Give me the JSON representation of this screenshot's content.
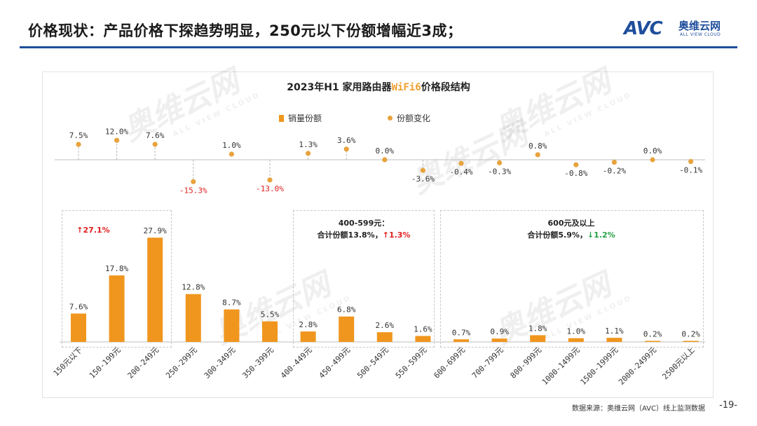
{
  "header": {
    "headline": "价格现状：产品价格下探趋势明显，250元以下份额增幅近3成；",
    "logo_mark": "AVC",
    "logo_cn": "奥维云网",
    "logo_en": "ALL VIEW CLOUD"
  },
  "chart_title": {
    "prefix": "2023年H1 家用路由器",
    "highlight": "WiFi6",
    "suffix": "价格段结构"
  },
  "legend": {
    "bar_label": "销量份额",
    "dot_label": "份额变化"
  },
  "groups": {
    "g1_change": "27.1%",
    "g1_arrow": "↑",
    "g2_title": "400-599元：",
    "g2_total_prefix": "合计份额13.8%，",
    "g2_arrow": "↑",
    "g2_change": "1.3%",
    "g3_title": "600元及以上",
    "g3_total_prefix": "合计份额5.9%，",
    "g3_arrow": "↓",
    "g3_change": "1.2%"
  },
  "watermark": {
    "text": "奥维云网",
    "sub": "ALL VIEW CLOUD"
  },
  "footer": {
    "source": "数据来源：奥维云网（AVC）线上监测数据",
    "page": "-19-"
  },
  "colors": {
    "bar": "#f0961e",
    "dot": "#e7a33d",
    "negative": "#e02020",
    "up": "#e02020",
    "down": "#22a040",
    "brand": "#1f4e9c"
  },
  "chart_data": {
    "type": "bar",
    "title": "2023年H1 家用路由器WiFi6价格段结构",
    "categories": [
      "150元以下",
      "150-199元",
      "200-249元",
      "250-299元",
      "300-349元",
      "350-399元",
      "400-449元",
      "450-499元",
      "500-549元",
      "550-599元",
      "600-699元",
      "700-799元",
      "800-999元",
      "1000-1499元",
      "1500-1999元",
      "2000-2499元",
      "2500元以上"
    ],
    "series": [
      {
        "name": "销量份额",
        "type": "bar",
        "values": [
          7.6,
          17.8,
          27.9,
          12.8,
          8.7,
          5.5,
          2.8,
          6.8,
          2.6,
          1.6,
          0.7,
          0.9,
          1.8,
          1.0,
          1.1,
          0.2,
          0.2
        ],
        "labels": [
          "7.6%",
          "17.8%",
          "27.9%",
          "12.8%",
          "8.7%",
          "5.5%",
          "2.8%",
          "6.8%",
          "2.6%",
          "1.6%",
          "0.7%",
          "0.9%",
          "1.8%",
          "1.0%",
          "1.1%",
          "0.2%",
          "0.2%"
        ]
      },
      {
        "name": "份额变化",
        "type": "dot",
        "values": [
          7.5,
          12.0,
          7.6,
          -15.3,
          1.0,
          -13.0,
          1.3,
          3.6,
          0.0,
          -3.6,
          -0.4,
          -0.3,
          0.8,
          -0.8,
          -0.2,
          0.0,
          -0.1
        ],
        "labels": [
          "7.5%",
          "12.0%",
          "7.6%",
          "-15.3%",
          "1.0%",
          "-13.0%",
          "1.3%",
          "3.6%",
          "0.0%",
          "-3.6%",
          "-0.4%",
          "-0.3%",
          "0.8%",
          "-0.8%",
          "-0.2%",
          "0.0%",
          "-0.1%"
        ]
      }
    ],
    "ylabel": "",
    "xlabel": "",
    "ylim_bar": [
      0,
      30
    ]
  }
}
